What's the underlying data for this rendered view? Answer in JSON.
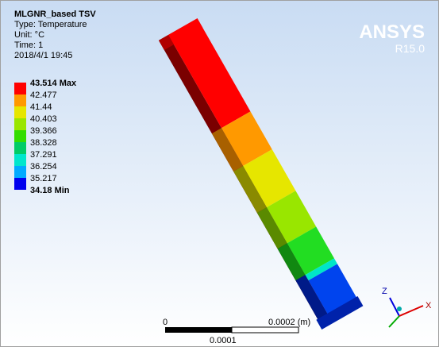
{
  "header": {
    "title": "MLGNR_based TSV",
    "lines": [
      "Type: Temperature",
      "Unit: °C",
      "Time: 1",
      "2018/4/1 19:45"
    ]
  },
  "legend": {
    "labels": [
      "43.514 Max",
      "42.477",
      "41.44",
      "40.403",
      "39.366",
      "38.328",
      "37.291",
      "36.254",
      "35.217",
      "34.18 Min"
    ]
  },
  "logo": {
    "name": "ANSYS",
    "version": "R15.0"
  },
  "scale_bar": {
    "start": "0",
    "end": "0.0002 (m)",
    "middle": "0.0001"
  },
  "triad": {
    "z": "Z",
    "x": "X"
  }
}
